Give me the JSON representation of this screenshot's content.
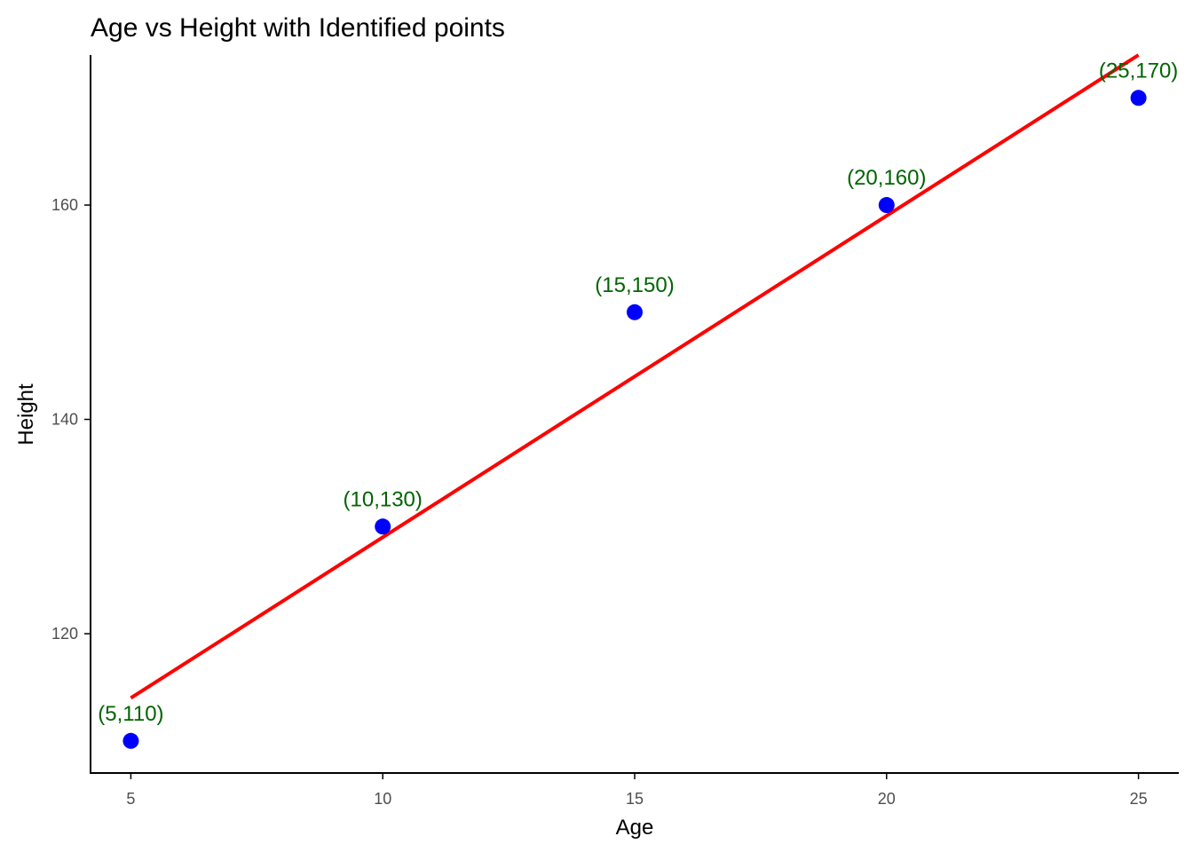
{
  "chart_data": {
    "type": "scatter",
    "title": "Age vs Height with Identified points",
    "xlabel": "Age",
    "ylabel": "Height",
    "xlim": [
      4.2,
      25.8
    ],
    "ylim": [
      107,
      174
    ],
    "x_ticks": [
      5,
      10,
      15,
      20,
      25
    ],
    "x_tick_labels": [
      "5",
      "10",
      "15",
      "20",
      "25"
    ],
    "y_ticks": [
      120,
      140,
      160
    ],
    "y_tick_labels": [
      "120",
      "140",
      "160"
    ],
    "grid": false,
    "points": [
      {
        "x": 5,
        "y": 110,
        "label": "(5,110)"
      },
      {
        "x": 10,
        "y": 130,
        "label": "(10,130)"
      },
      {
        "x": 15,
        "y": 150,
        "label": "(15,150)"
      },
      {
        "x": 20,
        "y": 160,
        "label": "(20,160)"
      },
      {
        "x": 25,
        "y": 170,
        "label": "(25,170)"
      }
    ],
    "trend_line": {
      "x": [
        5,
        25
      ],
      "y": [
        114,
        174
      ]
    },
    "colors": {
      "points": "#0000ff",
      "labels": "#006400",
      "trend_line": "#ff0000",
      "axis": "#000000",
      "tick_labels": "#4d4d4d"
    }
  }
}
